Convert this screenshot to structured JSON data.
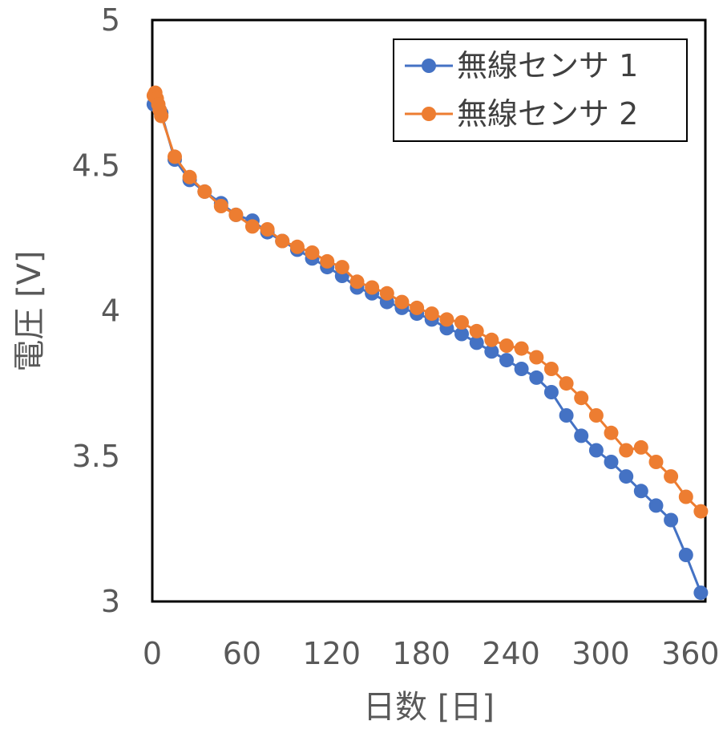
{
  "chart_data": {
    "type": "line",
    "title": "",
    "xlabel": "日数 [日]",
    "ylabel": "電圧 [V]",
    "xlim": [
      0,
      370
    ],
    "ylim": [
      3,
      5
    ],
    "xticks": [
      0,
      60,
      120,
      180,
      240,
      300,
      360
    ],
    "yticks": [
      3,
      3.5,
      4,
      4.5,
      5
    ],
    "xtick_labels": [
      "0",
      "60",
      "120",
      "180",
      "240",
      "300",
      "360"
    ],
    "ytick_labels": [
      "3",
      "3.5",
      "4",
      "4.5",
      "5"
    ],
    "grid": false,
    "legend_position": "top-right",
    "markers": "circle",
    "series": [
      {
        "name": "無線センサ 1",
        "color": "#4472C4",
        "x": [
          1,
          2,
          3,
          4,
          5,
          6,
          15,
          25,
          35,
          46,
          56,
          67,
          77,
          87,
          97,
          107,
          117,
          127,
          137,
          147,
          157,
          167,
          177,
          187,
          197,
          207,
          217,
          227,
          237,
          247,
          257,
          267,
          277,
          287,
          297,
          307,
          317,
          327,
          337,
          347,
          357,
          367
        ],
        "y": [
          4.71,
          4.72,
          4.72,
          4.7,
          4.69,
          4.68,
          4.52,
          4.45,
          4.41,
          4.37,
          4.33,
          4.31,
          4.27,
          4.24,
          4.21,
          4.18,
          4.15,
          4.12,
          4.08,
          4.06,
          4.03,
          4.01,
          3.99,
          3.97,
          3.94,
          3.92,
          3.89,
          3.86,
          3.83,
          3.8,
          3.77,
          3.72,
          3.64,
          3.57,
          3.52,
          3.48,
          3.43,
          3.38,
          3.33,
          3.28,
          3.16,
          3.03
        ]
      },
      {
        "name": "無線センサ 2",
        "color": "#ED7D31",
        "x": [
          1,
          2,
          3,
          4,
          5,
          6,
          15,
          25,
          35,
          46,
          56,
          67,
          77,
          87,
          97,
          107,
          117,
          127,
          137,
          147,
          157,
          167,
          177,
          187,
          197,
          207,
          217,
          227,
          237,
          247,
          257,
          267,
          277,
          287,
          297,
          307,
          317,
          327,
          337,
          347,
          357,
          367
        ],
        "y": [
          4.74,
          4.75,
          4.73,
          4.71,
          4.69,
          4.67,
          4.53,
          4.46,
          4.41,
          4.36,
          4.33,
          4.29,
          4.28,
          4.24,
          4.22,
          4.2,
          4.17,
          4.15,
          4.1,
          4.08,
          4.06,
          4.03,
          4.01,
          3.99,
          3.97,
          3.96,
          3.93,
          3.9,
          3.88,
          3.87,
          3.84,
          3.8,
          3.75,
          3.7,
          3.64,
          3.58,
          3.52,
          3.53,
          3.48,
          3.43,
          3.36,
          3.31
        ]
      }
    ]
  }
}
